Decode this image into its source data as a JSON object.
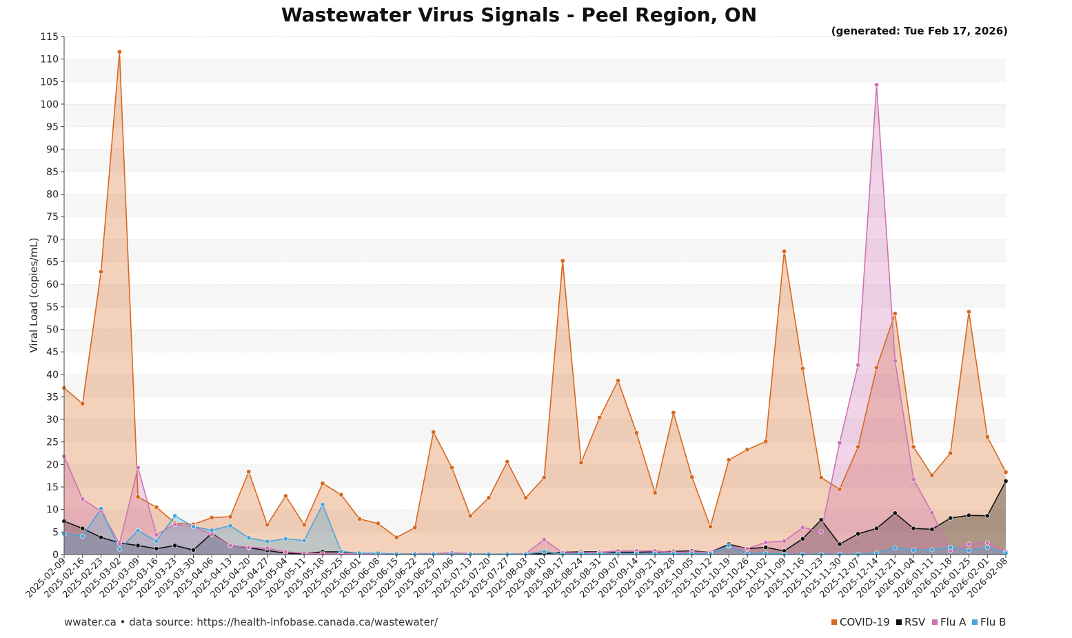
{
  "chart_data": {
    "type": "area",
    "title": "Wastewater Virus Signals - Peel Region, ON",
    "subtitle": "(generated: Tue Feb 17, 2026)",
    "xlabel": "",
    "ylabel": "Viral Load (copies/mL)",
    "ylim": [
      0,
      115
    ],
    "y_ticks": [
      0,
      5,
      10,
      15,
      20,
      25,
      30,
      35,
      40,
      45,
      50,
      55,
      60,
      65,
      70,
      75,
      80,
      85,
      90,
      95,
      100,
      105,
      110,
      115
    ],
    "grid": "horizontal bands",
    "legend_position": "bottom-right",
    "categories": [
      "2025-02-09",
      "2025-02-16",
      "2025-02-23",
      "2025-03-02",
      "2025-03-09",
      "2025-03-16",
      "2025-03-23",
      "2025-03-30",
      "2025-04-06",
      "2025-04-13",
      "2025-04-20",
      "2025-04-27",
      "2025-05-04",
      "2025-05-11",
      "2025-05-18",
      "2025-05-25",
      "2025-06-01",
      "2025-06-08",
      "2025-06-15",
      "2025-06-22",
      "2025-06-29",
      "2025-07-06",
      "2025-07-13",
      "2025-07-20",
      "2025-07-27",
      "2025-08-03",
      "2025-08-10",
      "2025-08-17",
      "2025-08-24",
      "2025-08-31",
      "2025-09-07",
      "2025-09-14",
      "2025-09-21",
      "2025-09-28",
      "2025-10-05",
      "2025-10-12",
      "2025-10-19",
      "2025-10-26",
      "2025-11-02",
      "2025-11-09",
      "2025-11-16",
      "2025-11-23",
      "2025-11-30",
      "2025-12-07",
      "2025-12-14",
      "2025-12-21",
      "2026-01-04",
      "2026-01-11",
      "2026-01-18",
      "2026-01-25",
      "2026-02-01",
      "2026-02-08"
    ],
    "series": [
      {
        "name": "COVID-19",
        "color": "#d7681e",
        "values": [
          37,
          33.5,
          62.8,
          111.6,
          12.8,
          10.5,
          7,
          6.7,
          8.2,
          8.4,
          18.4,
          6.6,
          13,
          6.6,
          15.8,
          13.3,
          7.9,
          6.9,
          3.8,
          6,
          27.2,
          19.3,
          8.6,
          12.6,
          20.6,
          12.6,
          17.1,
          65.2,
          20.4,
          30.4,
          38.6,
          27,
          13.7,
          31.5,
          17.2,
          6.2,
          21,
          23.3,
          25.1,
          67.3,
          41.3,
          17.1,
          14.5,
          23.9,
          41.5,
          53.5,
          23.9,
          17.6,
          22.5,
          53.9,
          26.1,
          18.3
        ]
      },
      {
        "name": "RSV",
        "color": "#111111",
        "values": [
          7.4,
          5.8,
          3.8,
          2.6,
          2,
          1.3,
          2,
          1,
          4.7,
          2,
          1.5,
          0.9,
          0.3,
          0.2,
          0.6,
          0.6,
          0.2,
          0.2,
          0.1,
          0.1,
          0.1,
          0.2,
          0.1,
          0.1,
          0.1,
          0.1,
          0.2,
          0.5,
          0.6,
          0.6,
          0.5,
          0.5,
          0.6,
          0.7,
          0.8,
          0.5,
          2.3,
          1.3,
          1.6,
          0.8,
          3.5,
          7.7,
          2.3,
          4.6,
          5.8,
          9.2,
          5.8,
          5.6,
          8.1,
          8.7,
          8.6,
          16.3
        ]
      },
      {
        "name": "Flu A",
        "color": "#cf72b3",
        "values": [
          21.8,
          12.3,
          9.6,
          2.4,
          19.3,
          4.4,
          6.7,
          6.2,
          4.5,
          2,
          1.6,
          1.4,
          0.6,
          0.3,
          0.2,
          0.2,
          0.2,
          0.2,
          0.1,
          0.2,
          0.2,
          0.4,
          0.2,
          0.1,
          0.1,
          0.2,
          3.3,
          0.4,
          0.4,
          0.5,
          0.8,
          0.8,
          0.8,
          0.5,
          0.6,
          0.5,
          1.9,
          1.3,
          2.7,
          3,
          6,
          5.1,
          24.8,
          42.1,
          104.3,
          43,
          16.7,
          9.3,
          0.8,
          2.3,
          2.6,
          0.6
        ]
      },
      {
        "name": "Flu B",
        "color": "#4aa5d9",
        "values": [
          4.6,
          4.1,
          10.2,
          1.2,
          5.3,
          3,
          8.6,
          6.2,
          5.4,
          6.4,
          3.7,
          2.9,
          3.5,
          3.1,
          11.1,
          0.7,
          0.3,
          0.3,
          0.1,
          0.1,
          0.1,
          0.1,
          0.1,
          0.1,
          0.1,
          0.1,
          0.7,
          0.1,
          0.2,
          0.2,
          0.2,
          0.2,
          0.2,
          0.2,
          0.2,
          0.2,
          2,
          0.2,
          0.3,
          0.1,
          0.1,
          0.1,
          0.1,
          0.1,
          0.3,
          1.5,
          1,
          1.1,
          1.6,
          0.9,
          1.6,
          0.3
        ]
      }
    ]
  },
  "footer": {
    "source": "wwater.ca • data source: https://health-infobase.canada.ca/wastewater/"
  }
}
